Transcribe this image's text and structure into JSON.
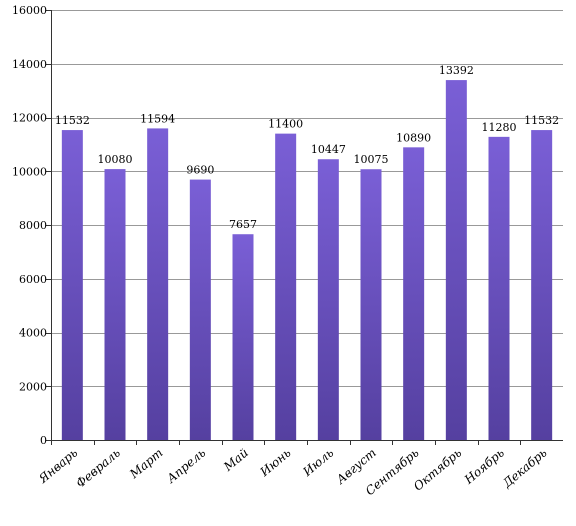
{
  "chart_data": {
    "type": "bar",
    "title": "",
    "xlabel": "",
    "ylabel": "",
    "categories": [
      "Январь",
      "Февраль",
      "Март",
      "Апрель",
      "Май",
      "Июнь",
      "Июль",
      "Август",
      "Сентябрь",
      "Октябрь",
      "Ноябрь",
      "Декабрь"
    ],
    "values": [
      11532,
      10080,
      11594,
      9690,
      7657,
      11400,
      10447,
      10075,
      10890,
      13392,
      11280,
      11532
    ],
    "ylim": [
      0,
      16000
    ],
    "yticks": [
      0,
      2000,
      4000,
      6000,
      8000,
      10000,
      12000,
      14000,
      16000
    ],
    "grid": true,
    "legend": "none",
    "colors": {
      "bar_top": "#7a5fd6",
      "bar_bottom": "#5540a0",
      "grid": "#999999",
      "axis": "#333333"
    }
  }
}
